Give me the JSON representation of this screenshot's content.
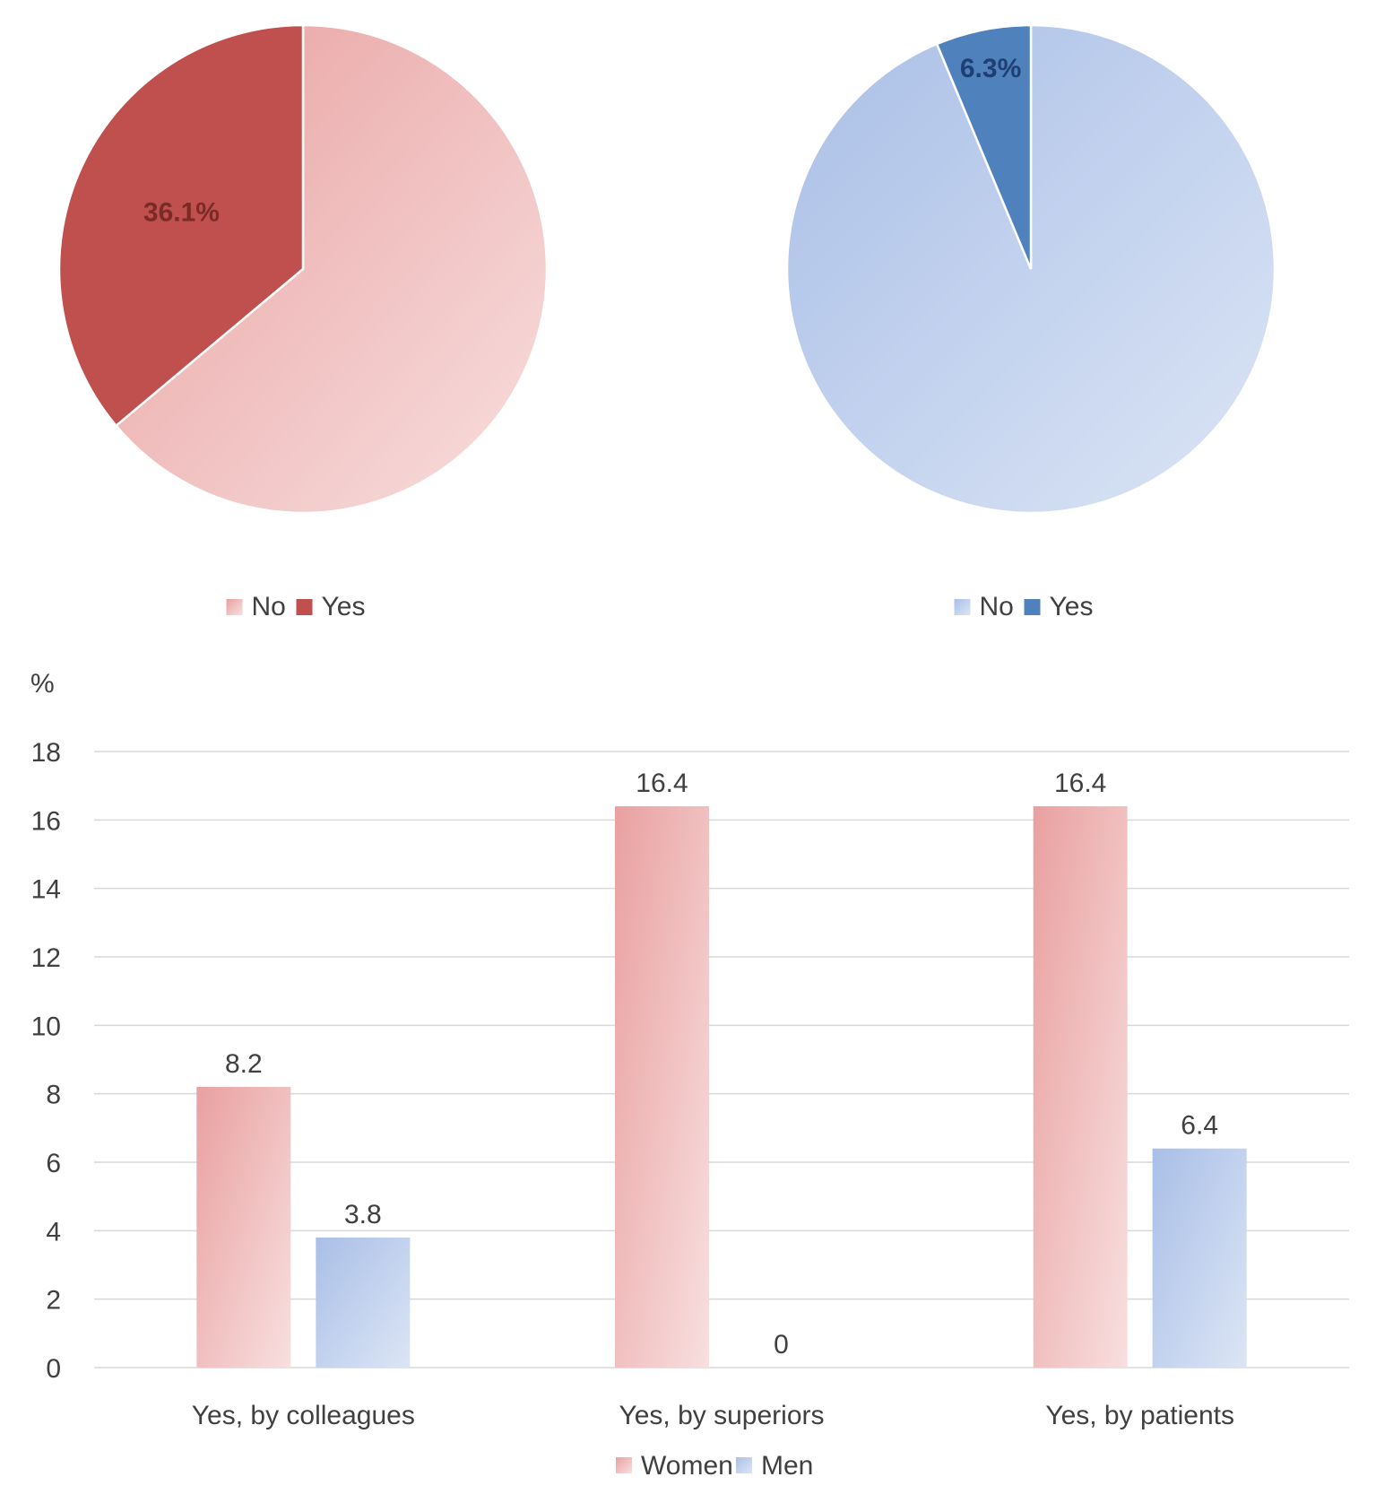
{
  "colors": {
    "women_dark": "#C0504D",
    "women_light_from": "#E9A0A0",
    "women_light_to": "#F8DFDF",
    "men_dark": "#4F81BD",
    "men_light_from": "#A9BFE7",
    "men_light_to": "#DCE5F5",
    "grid": "#D9D9D9",
    "text": "#404040"
  },
  "chart_data": [
    {
      "type": "pie",
      "slices": [
        {
          "label": "No",
          "value": 63.9
        },
        {
          "label": "Yes",
          "value": 36.1
        }
      ],
      "data_labels": {
        "Yes": "36.1%"
      },
      "legend": [
        "No",
        "Yes"
      ],
      "legend_position": "bottom"
    },
    {
      "type": "pie",
      "slices": [
        {
          "label": "No",
          "value": 93.7
        },
        {
          "label": "Yes",
          "value": 6.3
        }
      ],
      "data_labels": {
        "Yes": "6.3%"
      },
      "legend": [
        "No",
        "Yes"
      ],
      "legend_position": "bottom"
    },
    {
      "type": "bar",
      "categories": [
        "Yes, by colleagues",
        "Yes, by superiors",
        "Yes, by patients"
      ],
      "series": [
        {
          "name": "Women",
          "values": [
            8.2,
            16.4,
            16.4
          ]
        },
        {
          "name": "Men",
          "values": [
            3.8,
            0,
            6.4
          ]
        }
      ],
      "ylabel": "%",
      "ylim": [
        0,
        18
      ],
      "yticks": [
        0,
        2,
        4,
        6,
        8,
        10,
        12,
        14,
        16,
        18
      ],
      "grid": true,
      "legend_position": "bottom"
    }
  ]
}
